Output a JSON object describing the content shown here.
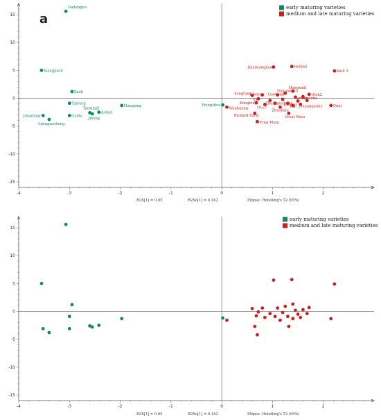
{
  "chart_data": [
    {
      "type": "scatter",
      "panel_label": "a",
      "xlim": [
        -4,
        3
      ],
      "ylim": [
        -16,
        17
      ],
      "xticks": [
        -4,
        -3,
        -2,
        -1,
        0,
        1,
        2
      ],
      "yticks": [
        -15,
        -10,
        -5,
        0,
        5,
        10,
        15
      ],
      "reference_lines": {
        "x": 0,
        "y": 0
      },
      "footer": [
        "R2X[1] = 0.05",
        "R2Xo[1] = 0.162",
        "Ellipse: Hotelling's T2 (95%)"
      ],
      "legend": {
        "position": "top-right",
        "entries": [
          {
            "label": "early maturing varieties",
            "color": "#0f8a5f"
          },
          {
            "label": "medium and late maturing varieties",
            "color": "#cc1f1a"
          }
        ]
      },
      "series": [
        {
          "name": "early maturing varieties",
          "color": "#0f8a5f",
          "points": [
            {
              "x": -3.07,
              "y": 15.6,
              "label": "Dadanguo"
            },
            {
              "x": -3.55,
              "y": 5.0,
              "label": "Xiangjiaoli"
            },
            {
              "x": -2.95,
              "y": 1.2,
              "label": "Zaoli"
            },
            {
              "x": -3.0,
              "y": -0.9,
              "label": "Taiyang"
            },
            {
              "x": -2.6,
              "y": -2.6,
              "label": "Taoxingli"
            },
            {
              "x": -2.42,
              "y": -2.5,
              "label": "Aoliuli"
            },
            {
              "x": -1.97,
              "y": -1.3,
              "label": "Hongxing"
            },
            {
              "x": -2.55,
              "y": -2.8,
              "label": "Jihong"
            },
            {
              "x": -3.0,
              "y": -3.1,
              "label": "Guida"
            },
            {
              "x": -3.52,
              "y": -3.1,
              "label": "Jixiaoling"
            },
            {
              "x": -3.4,
              "y": -3.8,
              "label": "Lixingzaohong"
            },
            {
              "x": 0.02,
              "y": -1.2,
              "label": "Hungshou"
            }
          ]
        },
        {
          "name": "medium and late maturing varieties",
          "color": "#cc1f1a",
          "points": [
            {
              "x": 1.02,
              "y": 5.6,
              "label": "Jinxixiangjiao"
            },
            {
              "x": 1.38,
              "y": 5.7,
              "label": "Heibali"
            },
            {
              "x": 2.22,
              "y": 4.9,
              "label": "Suili 3"
            },
            {
              "x": 1.4,
              "y": 1.3,
              "label": "Hongxinli"
            },
            {
              "x": 1.25,
              "y": 0.9,
              "label": "Naguangyu"
            },
            {
              "x": 1.72,
              "y": 0.7,
              "label": "Qiuli2"
            },
            {
              "x": 0.6,
              "y": 0.5,
              "label": "Fengtang"
            },
            {
              "x": 0.8,
              "y": 0.6,
              "label": "Cheney"
            },
            {
              "x": 1.1,
              "y": 0.6,
              "label": "Gaohong"
            },
            {
              "x": 1.45,
              "y": 0.2,
              "label": "Amber"
            },
            {
              "x": 0.72,
              "y": -0.1,
              "label": "XY"
            },
            {
              "x": 1.6,
              "y": 0.3,
              "label": "Angeleno"
            },
            {
              "x": 0.68,
              "y": -0.8,
              "label": "Konglong"
            },
            {
              "x": 1.05,
              "y": -0.9,
              "label": "Zhuanmeihong"
            },
            {
              "x": 0.85,
              "y": -1.1,
              "label": "10-27"
            },
            {
              "x": 2.15,
              "y": -1.3,
              "label": "Qiuji"
            },
            {
              "x": 0.1,
              "y": -1.6,
              "label": "Wanhuang"
            },
            {
              "x": 1.3,
              "y": -0.9,
              "label": "Dafeng"
            },
            {
              "x": 1.55,
              "y": -1.1,
              "label": "Huangganhe"
            },
            {
              "x": 1.15,
              "y": -1.6,
              "label": "Zhushalo"
            },
            {
              "x": 1.4,
              "y": -1.3,
              "label": "Du..."
            },
            {
              "x": 0.65,
              "y": -2.7,
              "label": "Richard Early"
            },
            {
              "x": 1.32,
              "y": -2.7,
              "label": "Great Rosa"
            },
            {
              "x": 0.7,
              "y": -4.2,
              "label": "Friar Plum"
            },
            {
              "x": 1.5,
              "y": -0.5,
              "label": ""
            },
            {
              "x": 1.68,
              "y": -0.4,
              "label": ""
            },
            {
              "x": 1.2,
              "y": -0.2,
              "label": ""
            },
            {
              "x": 0.95,
              "y": -0.4,
              "label": ""
            }
          ]
        }
      ]
    },
    {
      "type": "scatter",
      "xlim": [
        -4,
        3
      ],
      "ylim": [
        -16,
        17
      ],
      "xticks": [
        -4,
        -3,
        -2,
        -1,
        0,
        1,
        2
      ],
      "yticks": [
        -15,
        -10,
        -5,
        0,
        5,
        10,
        15
      ],
      "reference_lines": {
        "x": 0,
        "y": 0
      },
      "footer": [
        "R2X[1] = 0.05",
        "R2Xo[1] = 0.162",
        "Ellipse: Hotelling's T2 (95%)"
      ],
      "legend": {
        "position": "top-right",
        "entries": [
          {
            "label": "early maturing varieties",
            "color": "#0f8a5f"
          },
          {
            "label": "medium and late maturing varieties",
            "color": "#cc1f1a"
          }
        ]
      },
      "series": [
        {
          "name": "early maturing varieties",
          "color": "#0f8a5f",
          "points": [
            {
              "x": -3.07,
              "y": 15.6
            },
            {
              "x": -3.55,
              "y": 5.0
            },
            {
              "x": -2.95,
              "y": 1.2
            },
            {
              "x": -3.0,
              "y": -0.9
            },
            {
              "x": -2.6,
              "y": -2.6
            },
            {
              "x": -2.42,
              "y": -2.5
            },
            {
              "x": -1.97,
              "y": -1.3
            },
            {
              "x": -2.55,
              "y": -2.8
            },
            {
              "x": -3.0,
              "y": -3.1
            },
            {
              "x": -3.52,
              "y": -3.1
            },
            {
              "x": -3.4,
              "y": -3.8
            },
            {
              "x": 0.02,
              "y": -1.2
            }
          ]
        },
        {
          "name": "medium and late maturing varieties",
          "color": "#cc1f1a",
          "points": [
            {
              "x": 1.02,
              "y": 5.6
            },
            {
              "x": 1.38,
              "y": 5.7
            },
            {
              "x": 2.22,
              "y": 4.9
            },
            {
              "x": 1.4,
              "y": 1.3
            },
            {
              "x": 1.25,
              "y": 0.9
            },
            {
              "x": 1.72,
              "y": 0.7
            },
            {
              "x": 0.6,
              "y": 0.5
            },
            {
              "x": 0.8,
              "y": 0.6
            },
            {
              "x": 1.1,
              "y": 0.6
            },
            {
              "x": 1.45,
              "y": 0.2
            },
            {
              "x": 0.72,
              "y": -0.1
            },
            {
              "x": 1.6,
              "y": 0.3
            },
            {
              "x": 0.68,
              "y": -0.8
            },
            {
              "x": 1.05,
              "y": -0.9
            },
            {
              "x": 0.85,
              "y": -1.1
            },
            {
              "x": 2.15,
              "y": -1.3
            },
            {
              "x": 0.1,
              "y": -1.6
            },
            {
              "x": 1.3,
              "y": -0.9
            },
            {
              "x": 1.55,
              "y": -1.1
            },
            {
              "x": 1.15,
              "y": -1.6
            },
            {
              "x": 1.4,
              "y": -1.3
            },
            {
              "x": 0.65,
              "y": -2.7
            },
            {
              "x": 1.32,
              "y": -2.7
            },
            {
              "x": 0.7,
              "y": -4.2
            },
            {
              "x": 1.5,
              "y": -0.5
            },
            {
              "x": 1.68,
              "y": -0.4
            },
            {
              "x": 1.2,
              "y": -0.2
            },
            {
              "x": 0.95,
              "y": -0.4
            }
          ]
        }
      ]
    }
  ]
}
